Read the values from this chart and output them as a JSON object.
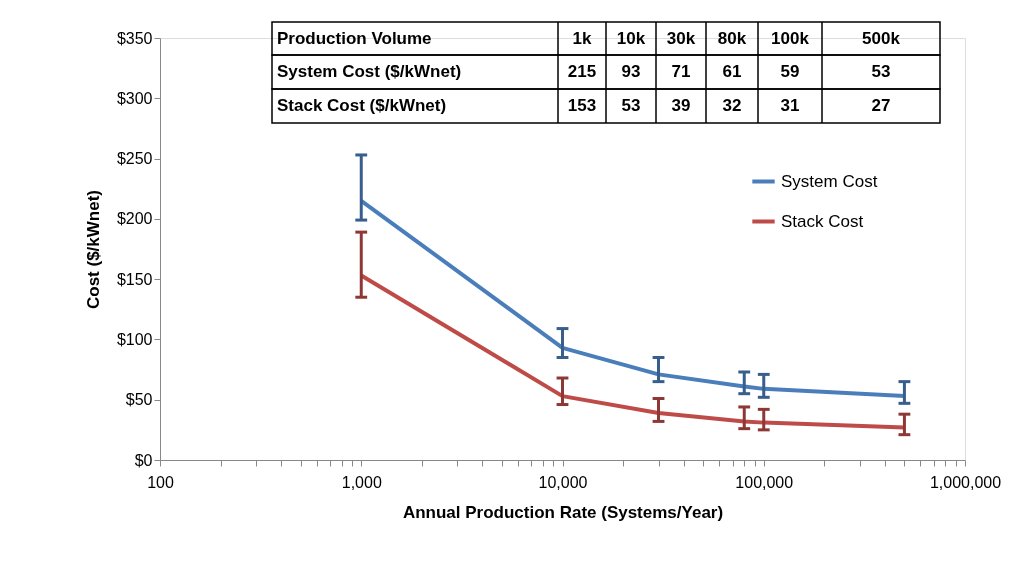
{
  "chart_data": {
    "type": "line",
    "xlabel": "Annual Production Rate (Systems/Year)",
    "ylabel": "Cost ($/kWnet)",
    "x": [
      1000,
      10000,
      30000,
      80000,
      100000,
      500000
    ],
    "series": [
      {
        "name": "System Cost",
        "color": "#4a7ebb",
        "values": [
          215,
          93,
          71,
          61,
          59,
          53
        ],
        "errors": [
          [
            199,
            253
          ],
          [
            85,
            109
          ],
          [
            65,
            85
          ],
          [
            55,
            73
          ],
          [
            52,
            71
          ],
          [
            47,
            65
          ]
        ]
      },
      {
        "name": "Stack Cost",
        "color": "#be4b48",
        "values": [
          153,
          53,
          39,
          32,
          31,
          27
        ],
        "errors": [
          [
            135,
            189
          ],
          [
            46,
            68
          ],
          [
            32,
            51
          ],
          [
            26,
            44
          ],
          [
            25,
            42
          ],
          [
            21,
            38
          ]
        ]
      }
    ],
    "annotations": [
      "Production Volume",
      "1k",
      "10k",
      "30k",
      "80k",
      "100k",
      "500k",
      "System Cost ($/kWnet)",
      "215",
      "93",
      "71",
      "61",
      "59",
      "53",
      "Stack Cost ($/kWnet)",
      "153",
      "53",
      "39",
      "32",
      "31",
      "27"
    ],
    "log": "x",
    "grid": false,
    "legend": "right",
    "marker": "none",
    "line_style": "solid",
    "xlim": [
      100,
      1000000
    ],
    "xticks": [
      {
        "value": 100,
        "label": "100"
      },
      {
        "value": 200,
        "label": null
      },
      {
        "value": 300,
        "label": null
      },
      {
        "value": 400,
        "label": null
      },
      {
        "value": 500,
        "label": null
      },
      {
        "value": 600,
        "label": null
      },
      {
        "value": 700,
        "label": null
      },
      {
        "value": 800,
        "label": null
      },
      {
        "value": 900,
        "label": null
      },
      {
        "value": 1000,
        "label": "1,000"
      },
      {
        "value": 2000,
        "label": null
      },
      {
        "value": 3000,
        "label": null
      },
      {
        "value": 4000,
        "label": null
      },
      {
        "value": 5000,
        "label": null
      },
      {
        "value": 6000,
        "label": null
      },
      {
        "value": 7000,
        "label": null
      },
      {
        "value": 8000,
        "label": null
      },
      {
        "value": 9000,
        "label": null
      },
      {
        "value": 10000,
        "label": "10,000"
      },
      {
        "value": 20000,
        "label": null
      },
      {
        "value": 30000,
        "label": null
      },
      {
        "value": 40000,
        "label": null
      },
      {
        "value": 50000,
        "label": null
      },
      {
        "value": 60000,
        "label": null
      },
      {
        "value": 70000,
        "label": null
      },
      {
        "value": 80000,
        "label": null
      },
      {
        "value": 90000,
        "label": null
      },
      {
        "value": 100000,
        "label": "100,000"
      },
      {
        "value": 200000,
        "label": null
      },
      {
        "value": 300000,
        "label": null
      },
      {
        "value": 400000,
        "label": null
      },
      {
        "value": 500000,
        "label": null
      },
      {
        "value": 600000,
        "label": null
      },
      {
        "value": 700000,
        "label": null
      },
      {
        "value": 800000,
        "label": null
      },
      {
        "value": 900000,
        "label": null
      },
      {
        "value": 1000000,
        "label": "1,000,000"
      }
    ],
    "ylim": [
      0,
      350
    ],
    "yticks": [
      {
        "value": 0,
        "label": "$0"
      },
      {
        "value": 50,
        "label": "$50"
      },
      {
        "value": 100,
        "label": "$100"
      },
      {
        "value": 150,
        "label": "$150"
      },
      {
        "value": 200,
        "label": "$200"
      },
      {
        "value": 250,
        "label": "$250"
      },
      {
        "value": 300,
        "label": "$300"
      },
      {
        "value": 350,
        "label": "$350"
      }
    ]
  }
}
